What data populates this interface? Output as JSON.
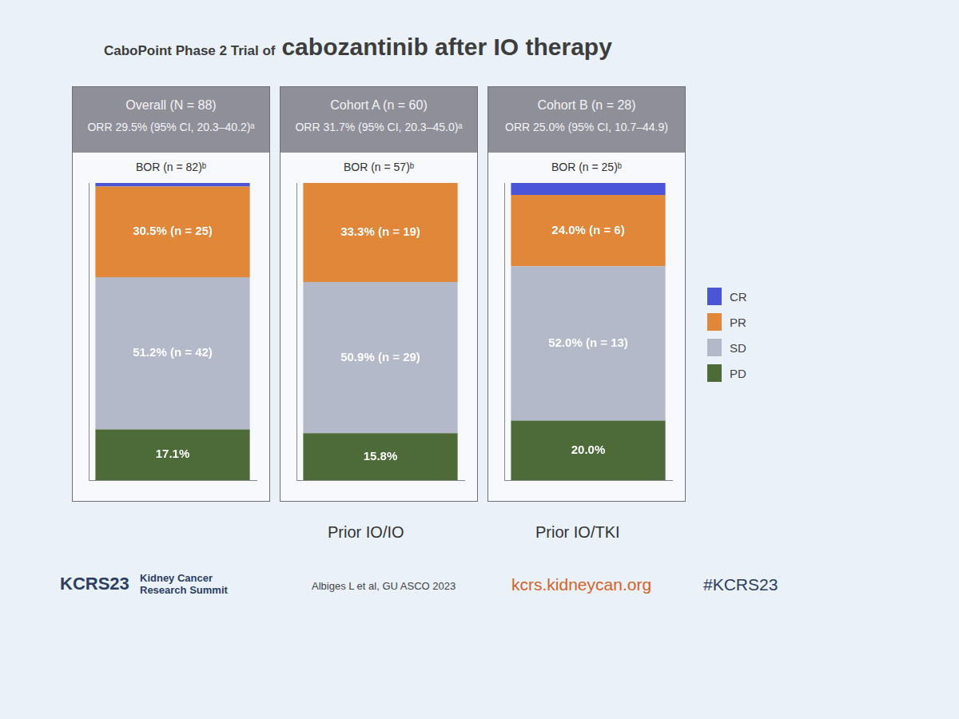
{
  "title": {
    "lead": "CaboPoint Phase 2 Trial of",
    "main": "cabozantinib after IO therapy"
  },
  "chart_data": [
    {
      "type": "bar",
      "title": "Overall (N = 88)",
      "subtitle": "ORR 29.5% (95% CI, 20.3–40.2)ᵃ",
      "annotation": "BOR (n = 82)ᵇ",
      "categories": [
        null
      ],
      "series": [
        {
          "name": "CR",
          "color": "#4b55d8",
          "values": [
            1.2
          ],
          "value_labels": [
            null
          ]
        },
        {
          "name": "PR",
          "color": "#e0873a",
          "values": [
            30.5
          ],
          "value_labels": [
            "30.5% (n = 25)"
          ]
        },
        {
          "name": "SD",
          "color": "#b4b9c9",
          "values": [
            51.2
          ],
          "value_labels": [
            "51.2% (n = 42)"
          ]
        },
        {
          "name": "PD",
          "color": "#4d6b38",
          "values": [
            17.1
          ],
          "value_labels": [
            "17.1%"
          ]
        }
      ],
      "ylim": [
        0,
        100
      ],
      "stacked": true,
      "data_labels": true,
      "tick_labels": false,
      "legend": "right"
    },
    {
      "type": "bar",
      "title": "Cohort A (n = 60)",
      "subtitle": "ORR 31.7% (95% CI, 20.3–45.0)ᵃ",
      "annotation": "BOR (n = 57)ᵇ",
      "caption": "Prior IO/IO",
      "categories": [
        null
      ],
      "series": [
        {
          "name": "CR",
          "color": "#4b55d8",
          "values": [
            0
          ],
          "value_labels": [
            null
          ]
        },
        {
          "name": "PR",
          "color": "#e0873a",
          "values": [
            33.3
          ],
          "value_labels": [
            "33.3% (n = 19)"
          ]
        },
        {
          "name": "SD",
          "color": "#b4b9c9",
          "values": [
            50.9
          ],
          "value_labels": [
            "50.9% (n = 29)"
          ]
        },
        {
          "name": "PD",
          "color": "#4d6b38",
          "values": [
            15.8
          ],
          "value_labels": [
            "15.8%"
          ]
        }
      ],
      "ylim": [
        0,
        100
      ],
      "stacked": true,
      "data_labels": true,
      "tick_labels": false,
      "legend": "right"
    },
    {
      "type": "bar",
      "title": "Cohort B (n = 28)",
      "subtitle": "ORR 25.0% (95% CI, 10.7–44.9)",
      "annotation": "BOR (n = 25)ᵇ",
      "caption": "Prior IO/TKI",
      "categories": [
        null
      ],
      "series": [
        {
          "name": "CR",
          "color": "#4b55d8",
          "values": [
            4.0
          ],
          "value_labels": [
            null
          ]
        },
        {
          "name": "PR",
          "color": "#e0873a",
          "values": [
            24.0
          ],
          "value_labels": [
            "24.0% (n = 6)"
          ]
        },
        {
          "name": "SD",
          "color": "#b4b9c9",
          "values": [
            52.0
          ],
          "value_labels": [
            "52.0% (n = 13)"
          ]
        },
        {
          "name": "PD",
          "color": "#4d6b38",
          "values": [
            20.0
          ],
          "value_labels": [
            "20.0%"
          ]
        }
      ],
      "ylim": [
        0,
        100
      ],
      "stacked": true,
      "data_labels": true,
      "tick_labels": false,
      "legend": "right"
    }
  ],
  "footer": {
    "logo": "KCRS23",
    "logo_text": "Kidney Cancer Research Summit",
    "citation": "Albiges L et al, GU ASCO 2023",
    "url": "kcrs.kidneycan.org",
    "hashtag": "#KCRS23"
  }
}
